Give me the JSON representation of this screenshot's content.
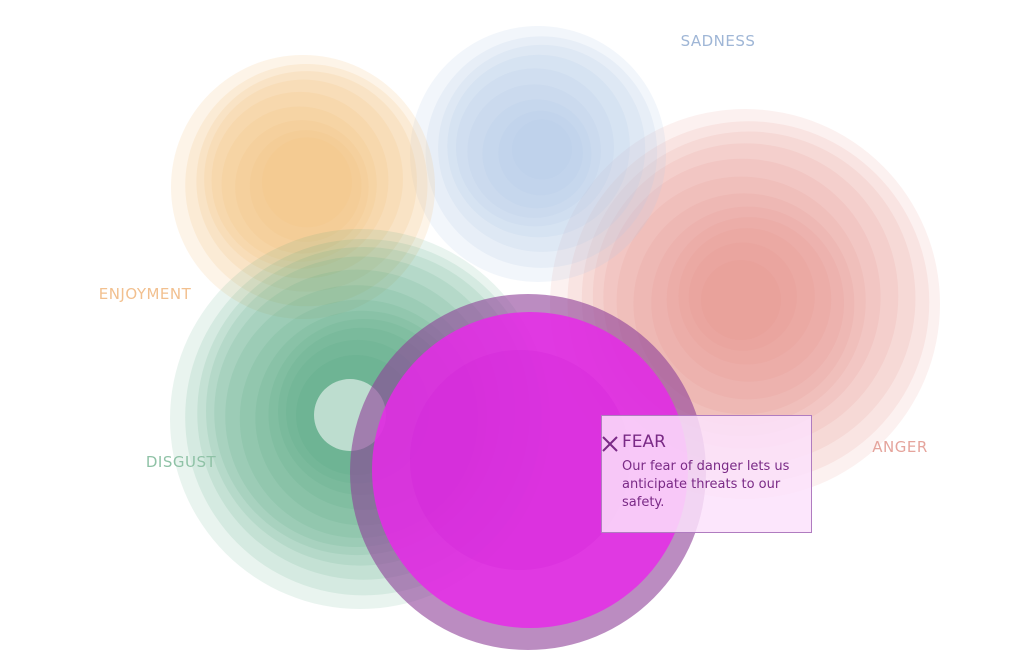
{
  "labels": {
    "sadness": "SADNESS",
    "enjoyment": "ENJOYMENT",
    "disgust": "DISGUST",
    "anger": "ANGER"
  },
  "tooltip": {
    "title": "FEAR",
    "text": "Our fear of danger lets us anticipate threats to our safety."
  }
}
